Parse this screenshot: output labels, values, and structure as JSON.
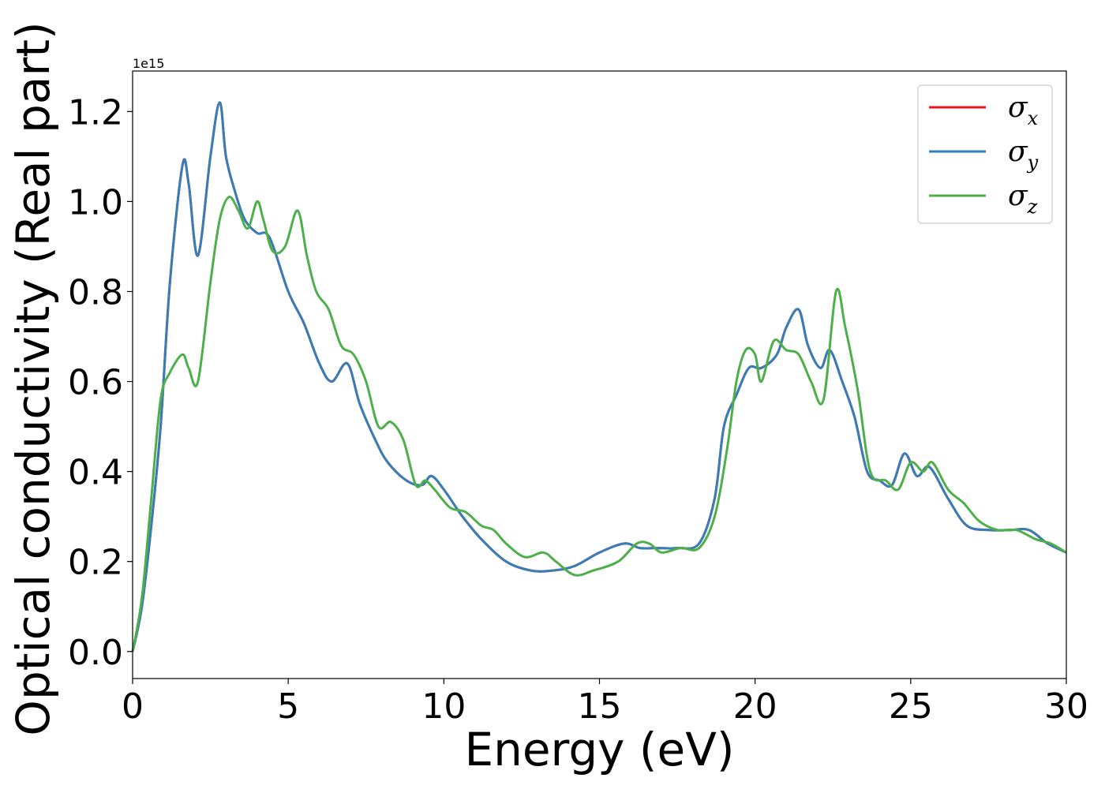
{
  "chart_data": {
    "type": "line",
    "xlabel": "Energy (eV)",
    "ylabel": "Optical conductivity (Real part)",
    "y_offset_label": "1e15",
    "xlim": [
      0,
      30
    ],
    "ylim": [
      -0.06,
      1.29
    ],
    "xticks": [
      0,
      5,
      10,
      15,
      20,
      25,
      30
    ],
    "xtick_labels": [
      "0",
      "5",
      "10",
      "15",
      "20",
      "25",
      "30"
    ],
    "yticks": [
      0.0,
      0.2,
      0.4,
      0.6,
      0.8,
      1.0,
      1.2
    ],
    "ytick_labels": [
      "0.0",
      "0.2",
      "0.4",
      "0.6",
      "0.8",
      "1.0",
      "1.2"
    ],
    "grid": false,
    "legend": {
      "placement": "top-right",
      "entries": [
        {
          "symbol": "σ",
          "sub": "x",
          "color": "#e41a1c"
        },
        {
          "symbol": "σ",
          "sub": "y",
          "color": "#377eb8"
        },
        {
          "symbol": "σ",
          "sub": "z",
          "color": "#4daf4a"
        }
      ]
    },
    "series": [
      {
        "id": "sigma_x",
        "color": "#e41a1c",
        "x": [
          0,
          0.3,
          0.6,
          0.9,
          1.2,
          1.6,
          1.8,
          2.1,
          2.5,
          2.8,
          3.0,
          3.3,
          3.6,
          4.0,
          4.4,
          5.0,
          5.5,
          6.0,
          6.4,
          6.9,
          7.3,
          7.8,
          8.2,
          8.8,
          9.3,
          9.6,
          10.0,
          10.6,
          11.2,
          12.0,
          12.8,
          13.5,
          14.2,
          15.0,
          15.8,
          16.3,
          16.8,
          17.5,
          18.2,
          18.7,
          19.0,
          19.4,
          19.8,
          20.2,
          20.7,
          21.0,
          21.4,
          21.7,
          22.1,
          22.4,
          22.8,
          23.2,
          23.6,
          24.0,
          24.4,
          24.8,
          25.2,
          25.6,
          26.2,
          26.8,
          27.5,
          28.2,
          28.8,
          29.4,
          30.0
        ],
        "y": [
          0.0,
          0.1,
          0.28,
          0.5,
          0.82,
          1.08,
          1.04,
          0.88,
          1.1,
          1.22,
          1.1,
          1.02,
          0.96,
          0.93,
          0.92,
          0.8,
          0.73,
          0.64,
          0.6,
          0.64,
          0.55,
          0.47,
          0.42,
          0.38,
          0.37,
          0.39,
          0.36,
          0.3,
          0.25,
          0.2,
          0.18,
          0.18,
          0.19,
          0.22,
          0.24,
          0.23,
          0.23,
          0.23,
          0.24,
          0.34,
          0.5,
          0.57,
          0.63,
          0.63,
          0.66,
          0.72,
          0.76,
          0.68,
          0.63,
          0.67,
          0.6,
          0.52,
          0.4,
          0.38,
          0.37,
          0.44,
          0.39,
          0.41,
          0.34,
          0.28,
          0.27,
          0.27,
          0.27,
          0.24,
          0.22
        ]
      },
      {
        "id": "sigma_y",
        "color": "#377eb8",
        "x": [
          0,
          0.3,
          0.6,
          0.9,
          1.2,
          1.6,
          1.8,
          2.1,
          2.5,
          2.8,
          3.0,
          3.3,
          3.6,
          4.0,
          4.4,
          5.0,
          5.5,
          6.0,
          6.4,
          6.9,
          7.3,
          7.8,
          8.2,
          8.8,
          9.3,
          9.6,
          10.0,
          10.6,
          11.2,
          12.0,
          12.8,
          13.5,
          14.2,
          15.0,
          15.8,
          16.3,
          16.8,
          17.5,
          18.2,
          18.7,
          19.0,
          19.4,
          19.8,
          20.2,
          20.7,
          21.0,
          21.4,
          21.7,
          22.1,
          22.4,
          22.8,
          23.2,
          23.6,
          24.0,
          24.4,
          24.8,
          25.2,
          25.6,
          26.2,
          26.8,
          27.5,
          28.2,
          28.8,
          29.4,
          30.0
        ],
        "y": [
          0.0,
          0.1,
          0.28,
          0.5,
          0.82,
          1.08,
          1.04,
          0.88,
          1.1,
          1.22,
          1.1,
          1.02,
          0.96,
          0.93,
          0.92,
          0.8,
          0.73,
          0.64,
          0.6,
          0.64,
          0.55,
          0.47,
          0.42,
          0.38,
          0.37,
          0.39,
          0.36,
          0.3,
          0.25,
          0.2,
          0.18,
          0.18,
          0.19,
          0.22,
          0.24,
          0.23,
          0.23,
          0.23,
          0.24,
          0.34,
          0.5,
          0.57,
          0.63,
          0.63,
          0.66,
          0.72,
          0.76,
          0.68,
          0.63,
          0.67,
          0.6,
          0.52,
          0.4,
          0.38,
          0.37,
          0.44,
          0.39,
          0.41,
          0.34,
          0.28,
          0.27,
          0.27,
          0.27,
          0.24,
          0.22
        ]
      },
      {
        "id": "sigma_z",
        "color": "#4daf4a",
        "x": [
          0,
          0.3,
          0.6,
          0.9,
          1.2,
          1.6,
          1.8,
          2.1,
          2.5,
          2.8,
          3.1,
          3.4,
          3.7,
          4.0,
          4.2,
          4.5,
          4.9,
          5.3,
          5.6,
          5.9,
          6.3,
          6.7,
          7.1,
          7.5,
          7.9,
          8.3,
          8.7,
          9.1,
          9.4,
          9.7,
          10.2,
          10.7,
          11.2,
          11.6,
          12.0,
          12.6,
          13.2,
          13.6,
          14.2,
          14.8,
          15.6,
          16.2,
          16.6,
          17.0,
          17.6,
          18.2,
          18.7,
          19.1,
          19.4,
          19.7,
          20.0,
          20.2,
          20.6,
          21.0,
          21.4,
          21.8,
          22.2,
          22.6,
          22.9,
          23.3,
          23.7,
          24.2,
          24.6,
          25.0,
          25.4,
          25.7,
          26.2,
          26.7,
          27.2,
          27.8,
          28.4,
          29.0,
          29.5,
          30.0
        ],
        "y": [
          0.0,
          0.12,
          0.34,
          0.56,
          0.62,
          0.66,
          0.63,
          0.6,
          0.82,
          0.96,
          1.01,
          0.98,
          0.94,
          1.0,
          0.96,
          0.89,
          0.9,
          0.98,
          0.88,
          0.8,
          0.76,
          0.68,
          0.66,
          0.6,
          0.5,
          0.51,
          0.47,
          0.37,
          0.38,
          0.36,
          0.32,
          0.31,
          0.28,
          0.27,
          0.24,
          0.21,
          0.22,
          0.2,
          0.17,
          0.18,
          0.2,
          0.24,
          0.24,
          0.22,
          0.23,
          0.23,
          0.3,
          0.45,
          0.6,
          0.67,
          0.66,
          0.6,
          0.69,
          0.67,
          0.66,
          0.6,
          0.56,
          0.8,
          0.72,
          0.58,
          0.4,
          0.38,
          0.36,
          0.42,
          0.4,
          0.42,
          0.36,
          0.33,
          0.29,
          0.27,
          0.27,
          0.25,
          0.24,
          0.22
        ]
      }
    ]
  }
}
